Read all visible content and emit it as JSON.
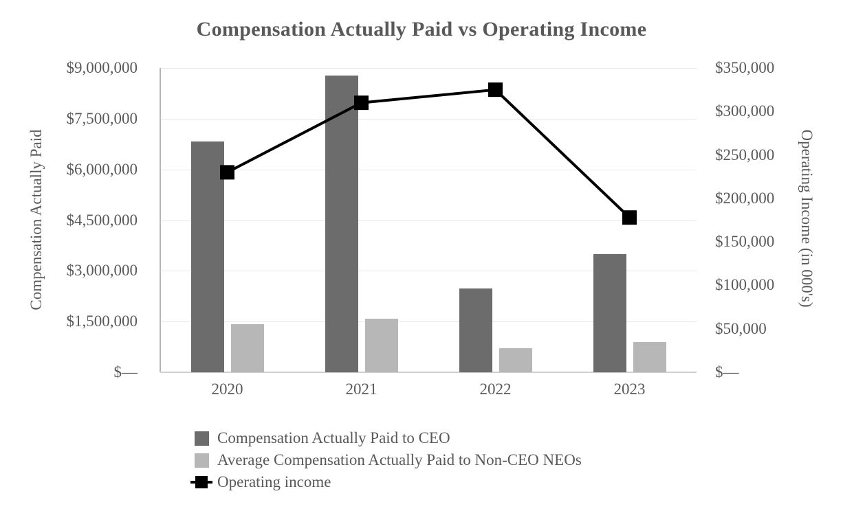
{
  "title": "Compensation Actually Paid vs Operating Income",
  "colors": {
    "title_text": "#595959",
    "axis_text": "#595959",
    "ceo_bar": "#6c6c6c",
    "neo_bar": "#b7b7b7",
    "line": "#000000",
    "gridline": "#e8e8e8",
    "y_axis_line": "#b7b7b7",
    "x_axis_line": "#cfcfcf",
    "background": "#ffffff"
  },
  "chart_data": {
    "type": "combo-bar-line",
    "title": "Compensation Actually Paid vs Operating Income",
    "categories": [
      "2020",
      "2021",
      "2022",
      "2023"
    ],
    "series": [
      {
        "name": "Compensation Actually Paid to CEO",
        "type": "bar",
        "axis": "left",
        "color_key": "ceo_bar",
        "values": [
          6830000,
          8780000,
          2480000,
          3500000
        ]
      },
      {
        "name": "Average Compensation Actually Paid to Non-CEO NEOs",
        "type": "bar",
        "axis": "left",
        "color_key": "neo_bar",
        "values": [
          1430000,
          1580000,
          710000,
          890000
        ]
      },
      {
        "name": "Operating income",
        "type": "line",
        "axis": "right",
        "color_key": "line",
        "marker": "square",
        "values": [
          230000,
          310000,
          325000,
          178000
        ]
      }
    ],
    "left_axis": {
      "title": "Compensation Actually Paid",
      "min": 0,
      "max": 9000000,
      "step": 1500000,
      "tick_labels_bottom_to_top": [
        "$—",
        "$1,500,000",
        "$3,000,000",
        "$4,500,000",
        "$6,000,000",
        "$7,500,000",
        "$9,000,000"
      ]
    },
    "right_axis": {
      "title": "Operating Income (in 000's)",
      "min": 0,
      "max": 350000,
      "step": 50000,
      "tick_labels_bottom_to_top": [
        "$—",
        "$50,000",
        "$100,000",
        "$150,000",
        "$200,000",
        "$250,000",
        "$300,000",
        "$350,000"
      ]
    },
    "grid": true,
    "legend_position": "bottom-left",
    "legend": [
      {
        "swatch": "bar",
        "color_key": "ceo_bar",
        "label": "Compensation Actually Paid to CEO"
      },
      {
        "swatch": "bar",
        "color_key": "neo_bar",
        "label": "Average Compensation Actually Paid to Non-CEO NEOs"
      },
      {
        "swatch": "line-marker",
        "color_key": "line",
        "label": "Operating income"
      }
    ]
  }
}
